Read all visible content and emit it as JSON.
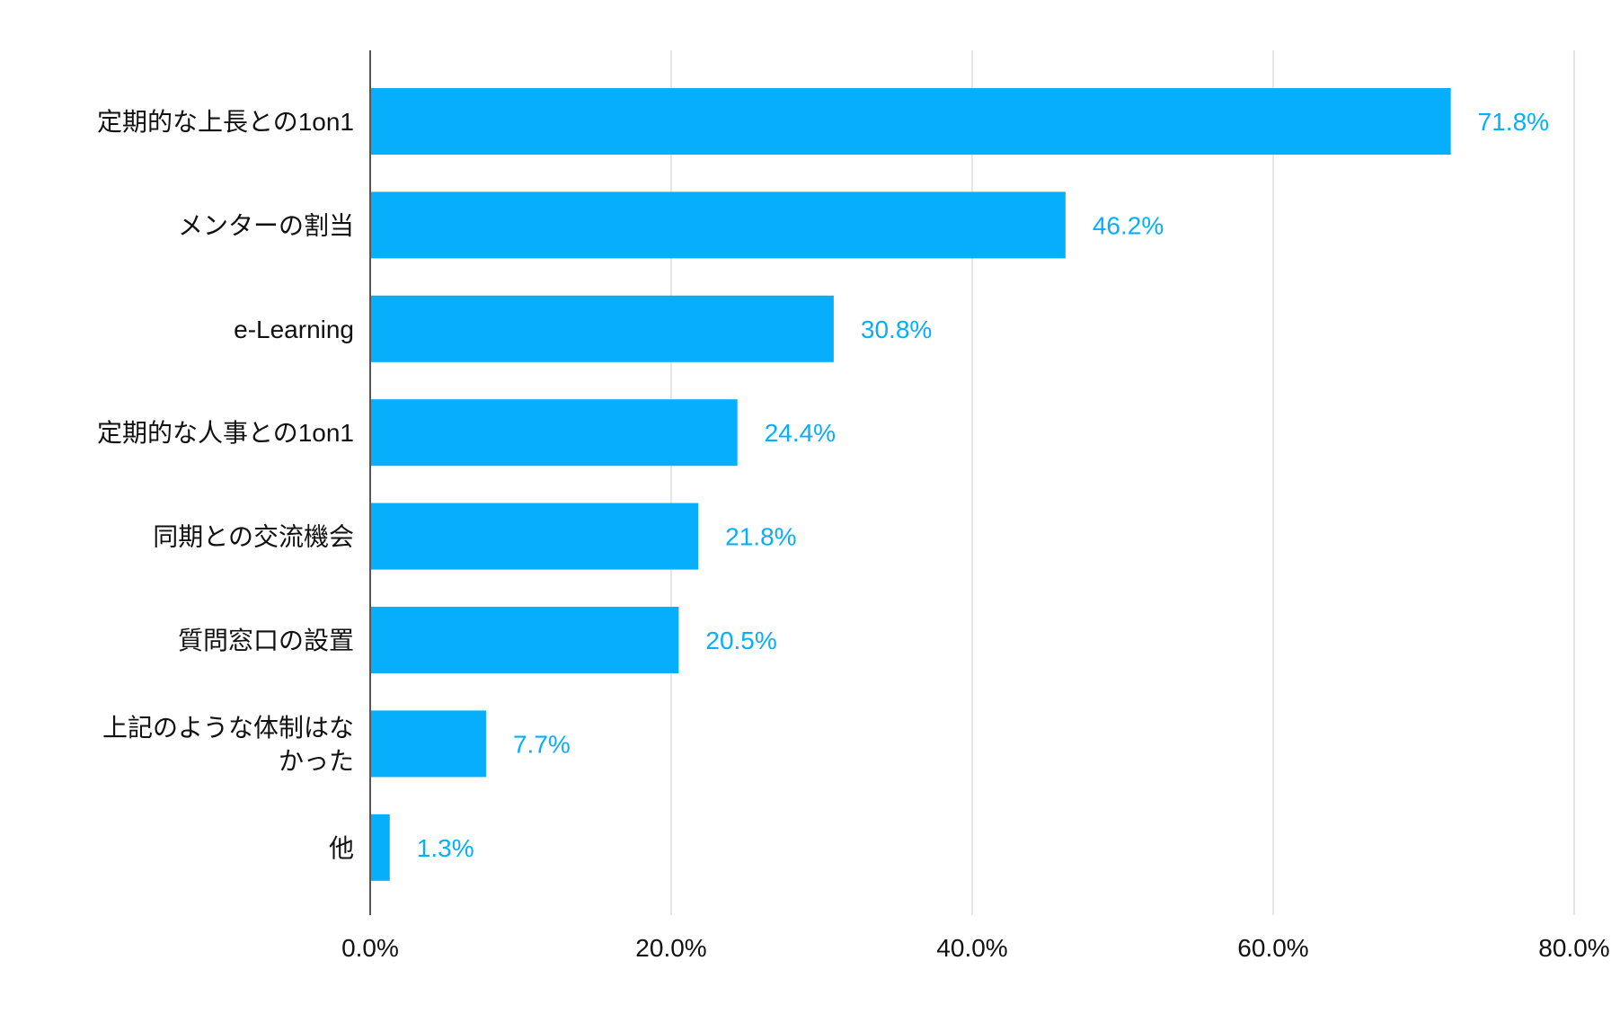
{
  "chart_data": {
    "type": "bar",
    "orientation": "horizontal",
    "title": "",
    "xlabel": "",
    "ylabel": "",
    "xlim": [
      0,
      80
    ],
    "x_ticks": [
      0,
      20,
      40,
      60,
      80
    ],
    "x_tick_labels": [
      "0.0%",
      "20.0%",
      "40.0%",
      "60.0%",
      "80.0%"
    ],
    "grid": true,
    "legend": "none",
    "bar_color": "#06AEFC",
    "label_color": "#06AEFC",
    "axis_color": "#555555",
    "grid_color": "#DDDDDD",
    "categories": [
      [
        "定期的な上長との1on1"
      ],
      [
        "メンターの割当"
      ],
      [
        "e-Learning"
      ],
      [
        "定期的な人事との1on1"
      ],
      [
        "同期との交流機会"
      ],
      [
        "質問窓口の設置"
      ],
      [
        "上記のような体制はな",
        "かった"
      ],
      [
        "他"
      ]
    ],
    "values": [
      71.8,
      46.2,
      30.8,
      24.4,
      21.8,
      20.5,
      7.7,
      1.3
    ],
    "value_labels": [
      "71.8%",
      "46.2%",
      "30.8%",
      "24.4%",
      "21.8%",
      "20.5%",
      "7.7%",
      "1.3%"
    ]
  }
}
